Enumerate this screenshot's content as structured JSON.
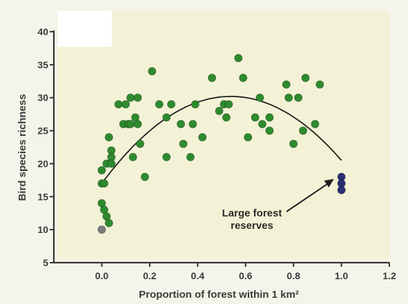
{
  "chart_data": {
    "type": "scatter",
    "title": "",
    "xlabel": "Proportion of forest within 1 km²",
    "ylabel": "Bird species richness",
    "xlim": [
      -0.2,
      1.2
    ],
    "ylim": [
      5,
      40
    ],
    "x_ticks": [
      "0.0",
      "0.2",
      "0.4",
      "0.6",
      "0.8",
      "1.0",
      "1.2"
    ],
    "x_tick_values": [
      0.0,
      0.2,
      0.4,
      0.6,
      0.8,
      1.0,
      1.2
    ],
    "y_ticks": [
      "5",
      "10",
      "15",
      "20",
      "25",
      "30",
      "35",
      "40"
    ],
    "y_tick_values": [
      5,
      10,
      15,
      20,
      25,
      30,
      35,
      40
    ],
    "grid": false,
    "series": [
      {
        "color": "#2e8b2e",
        "points": [
          [
            0.0,
            17
          ],
          [
            0.01,
            17
          ],
          [
            0.0,
            19
          ],
          [
            0.02,
            20
          ],
          [
            0.0,
            14
          ],
          [
            0.01,
            13
          ],
          [
            0.02,
            12
          ],
          [
            0.03,
            11
          ],
          [
            0.03,
            24
          ],
          [
            0.04,
            22
          ],
          [
            0.04,
            21
          ],
          [
            0.04,
            20
          ],
          [
            0.07,
            29
          ],
          [
            0.09,
            26
          ],
          [
            0.1,
            29
          ],
          [
            0.11,
            26
          ],
          [
            0.12,
            30
          ],
          [
            0.12,
            26
          ],
          [
            0.13,
            21
          ],
          [
            0.14,
            27
          ],
          [
            0.15,
            30
          ],
          [
            0.15,
            26
          ],
          [
            0.16,
            23
          ],
          [
            0.18,
            18
          ],
          [
            0.21,
            34
          ],
          [
            0.24,
            29
          ],
          [
            0.27,
            27
          ],
          [
            0.27,
            21
          ],
          [
            0.29,
            29
          ],
          [
            0.33,
            26
          ],
          [
            0.34,
            23
          ],
          [
            0.37,
            21
          ],
          [
            0.38,
            26
          ],
          [
            0.39,
            29
          ],
          [
            0.42,
            24
          ],
          [
            0.46,
            33
          ],
          [
            0.49,
            28
          ],
          [
            0.51,
            29
          ],
          [
            0.52,
            27
          ],
          [
            0.53,
            29
          ],
          [
            0.57,
            36
          ],
          [
            0.59,
            33
          ],
          [
            0.61,
            24
          ],
          [
            0.64,
            27
          ],
          [
            0.66,
            30
          ],
          [
            0.67,
            26
          ],
          [
            0.7,
            27
          ],
          [
            0.7,
            25
          ],
          [
            0.77,
            32
          ],
          [
            0.78,
            30
          ],
          [
            0.8,
            23
          ],
          [
            0.82,
            30
          ],
          [
            0.84,
            25
          ],
          [
            0.85,
            33
          ],
          [
            0.89,
            26
          ],
          [
            0.91,
            32
          ]
        ]
      },
      {
        "color": "#2a2f74",
        "points": [
          [
            1.0,
            18
          ],
          [
            1.0,
            17
          ],
          [
            1.0,
            16
          ]
        ]
      },
      {
        "color": "#7c7c7c",
        "points": [
          [
            0.0,
            10
          ]
        ]
      }
    ],
    "fit_curve": {
      "type": "quadratic",
      "x_range": [
        0.0,
        1.0
      ],
      "coefficients": [
        17.0,
        49.0,
        -45.5
      ]
    },
    "annotations": [
      {
        "text_lines": [
          "Large forest",
          "reserves"
        ],
        "points_to": [
          0.98,
          18.0
        ]
      }
    ]
  }
}
